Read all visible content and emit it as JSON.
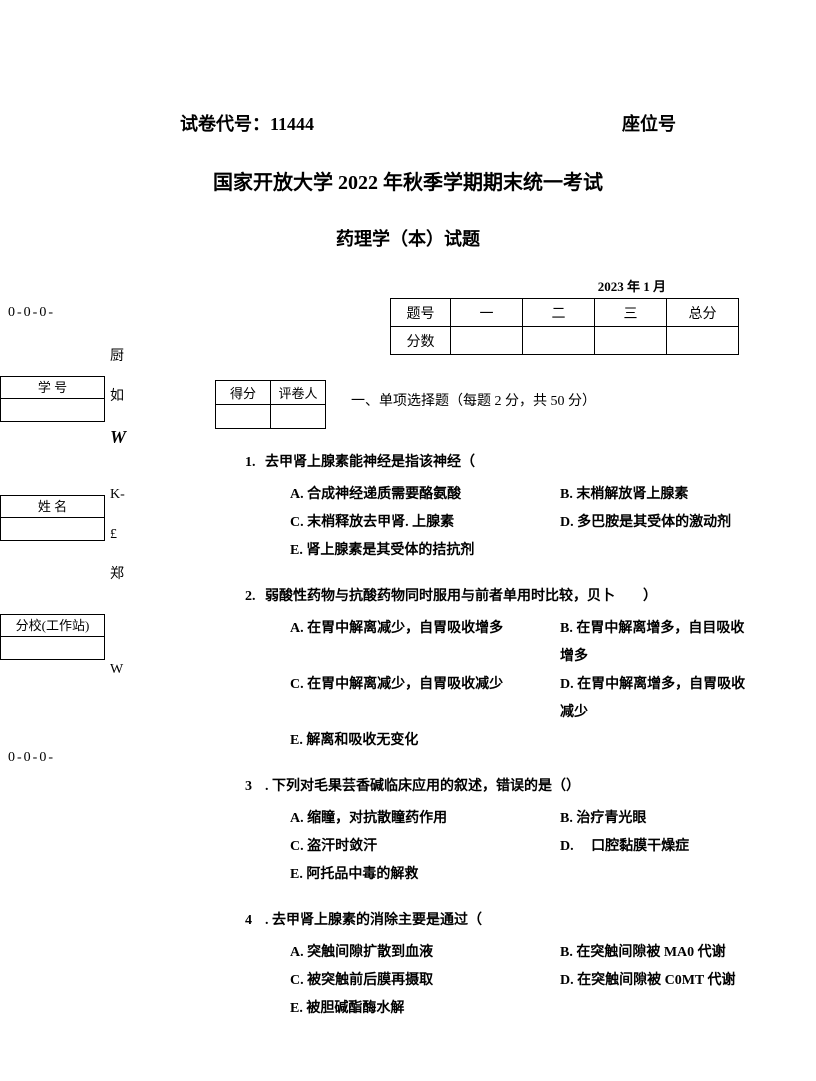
{
  "header": {
    "paper_code_label": "试卷代号：",
    "paper_code": "11444",
    "seat_label": "座位号"
  },
  "titles": {
    "main": "国家开放大学 2022 年秋季学期期末统一考试",
    "sub": "药理学（本）试题",
    "date": "2023 年 1 月"
  },
  "sidebar": {
    "marker": "0-0-0-",
    "chars": [
      "厨",
      "如",
      "W",
      "K-",
      "£",
      "郑",
      "W"
    ],
    "boxes": {
      "student_id": "学 号",
      "name": "姓 名",
      "campus": "分校(工作站)"
    }
  },
  "score_table": {
    "row1": [
      "题号",
      "一",
      "二",
      "三",
      "总分"
    ],
    "row2_label": "分数"
  },
  "mini_table": {
    "h1": "得分",
    "h2": "评卷人"
  },
  "section1_title": "一、单项选择题（每题 2 分，共 50 分）",
  "questions": [
    {
      "num": "1.",
      "stem": "去甲肾上腺素能神经是指该神经（",
      "opts": [
        {
          "l": "A. 合成神经递质需要酪氨酸",
          "r": "B. 末梢解放肾上腺素"
        },
        {
          "l": "C. 末梢释放去甲肾. 上腺素",
          "r": "D. 多巴胺是其受体的激动剂"
        },
        {
          "l": "E. 肾上腺素是其受体的拮抗剂",
          "r": ""
        }
      ]
    },
    {
      "num": "2.",
      "stem": "弱酸性药物与抗酸药物同时服用与前者单用时比较，贝卜　　）",
      "opts": [
        {
          "l": "A. 在胃中解离减少，自胃吸收增多",
          "r": "B. 在胃中解离增多，自目吸收增多"
        },
        {
          "l": "C. 在胃中解离减少，自胃吸收减少",
          "r": "D. 在胃中解离增多，自胃吸收减少"
        },
        {
          "l": "E. 解离和吸收无变化",
          "r": ""
        }
      ]
    },
    {
      "num": "3",
      "stem": ". 下列对毛果芸香碱临床应用的叙述，错误的是（）",
      "opts": [
        {
          "l": "A. 缩瞳，对抗散瞳药作用",
          "r": "B. 治疗青光眼"
        },
        {
          "l": "C. 盗汗时敛汗",
          "r": "D. 　口腔黏膜干燥症"
        },
        {
          "l": "E. 阿托品中毒的解救",
          "r": ""
        }
      ]
    },
    {
      "num": "4",
      "stem": ". 去甲肾上腺素的消除主要是通过（",
      "opts": [
        {
          "l": "A. 突触间隙扩散到血液",
          "r": "B. 在突触间隙被 MA0 代谢"
        },
        {
          "l": "C. 被突触前后膜再摄取",
          "r": "D. 在突触间隙被 C0MT 代谢"
        },
        {
          "l": "E. 被胆碱酯酶水解",
          "r": ""
        }
      ]
    }
  ]
}
